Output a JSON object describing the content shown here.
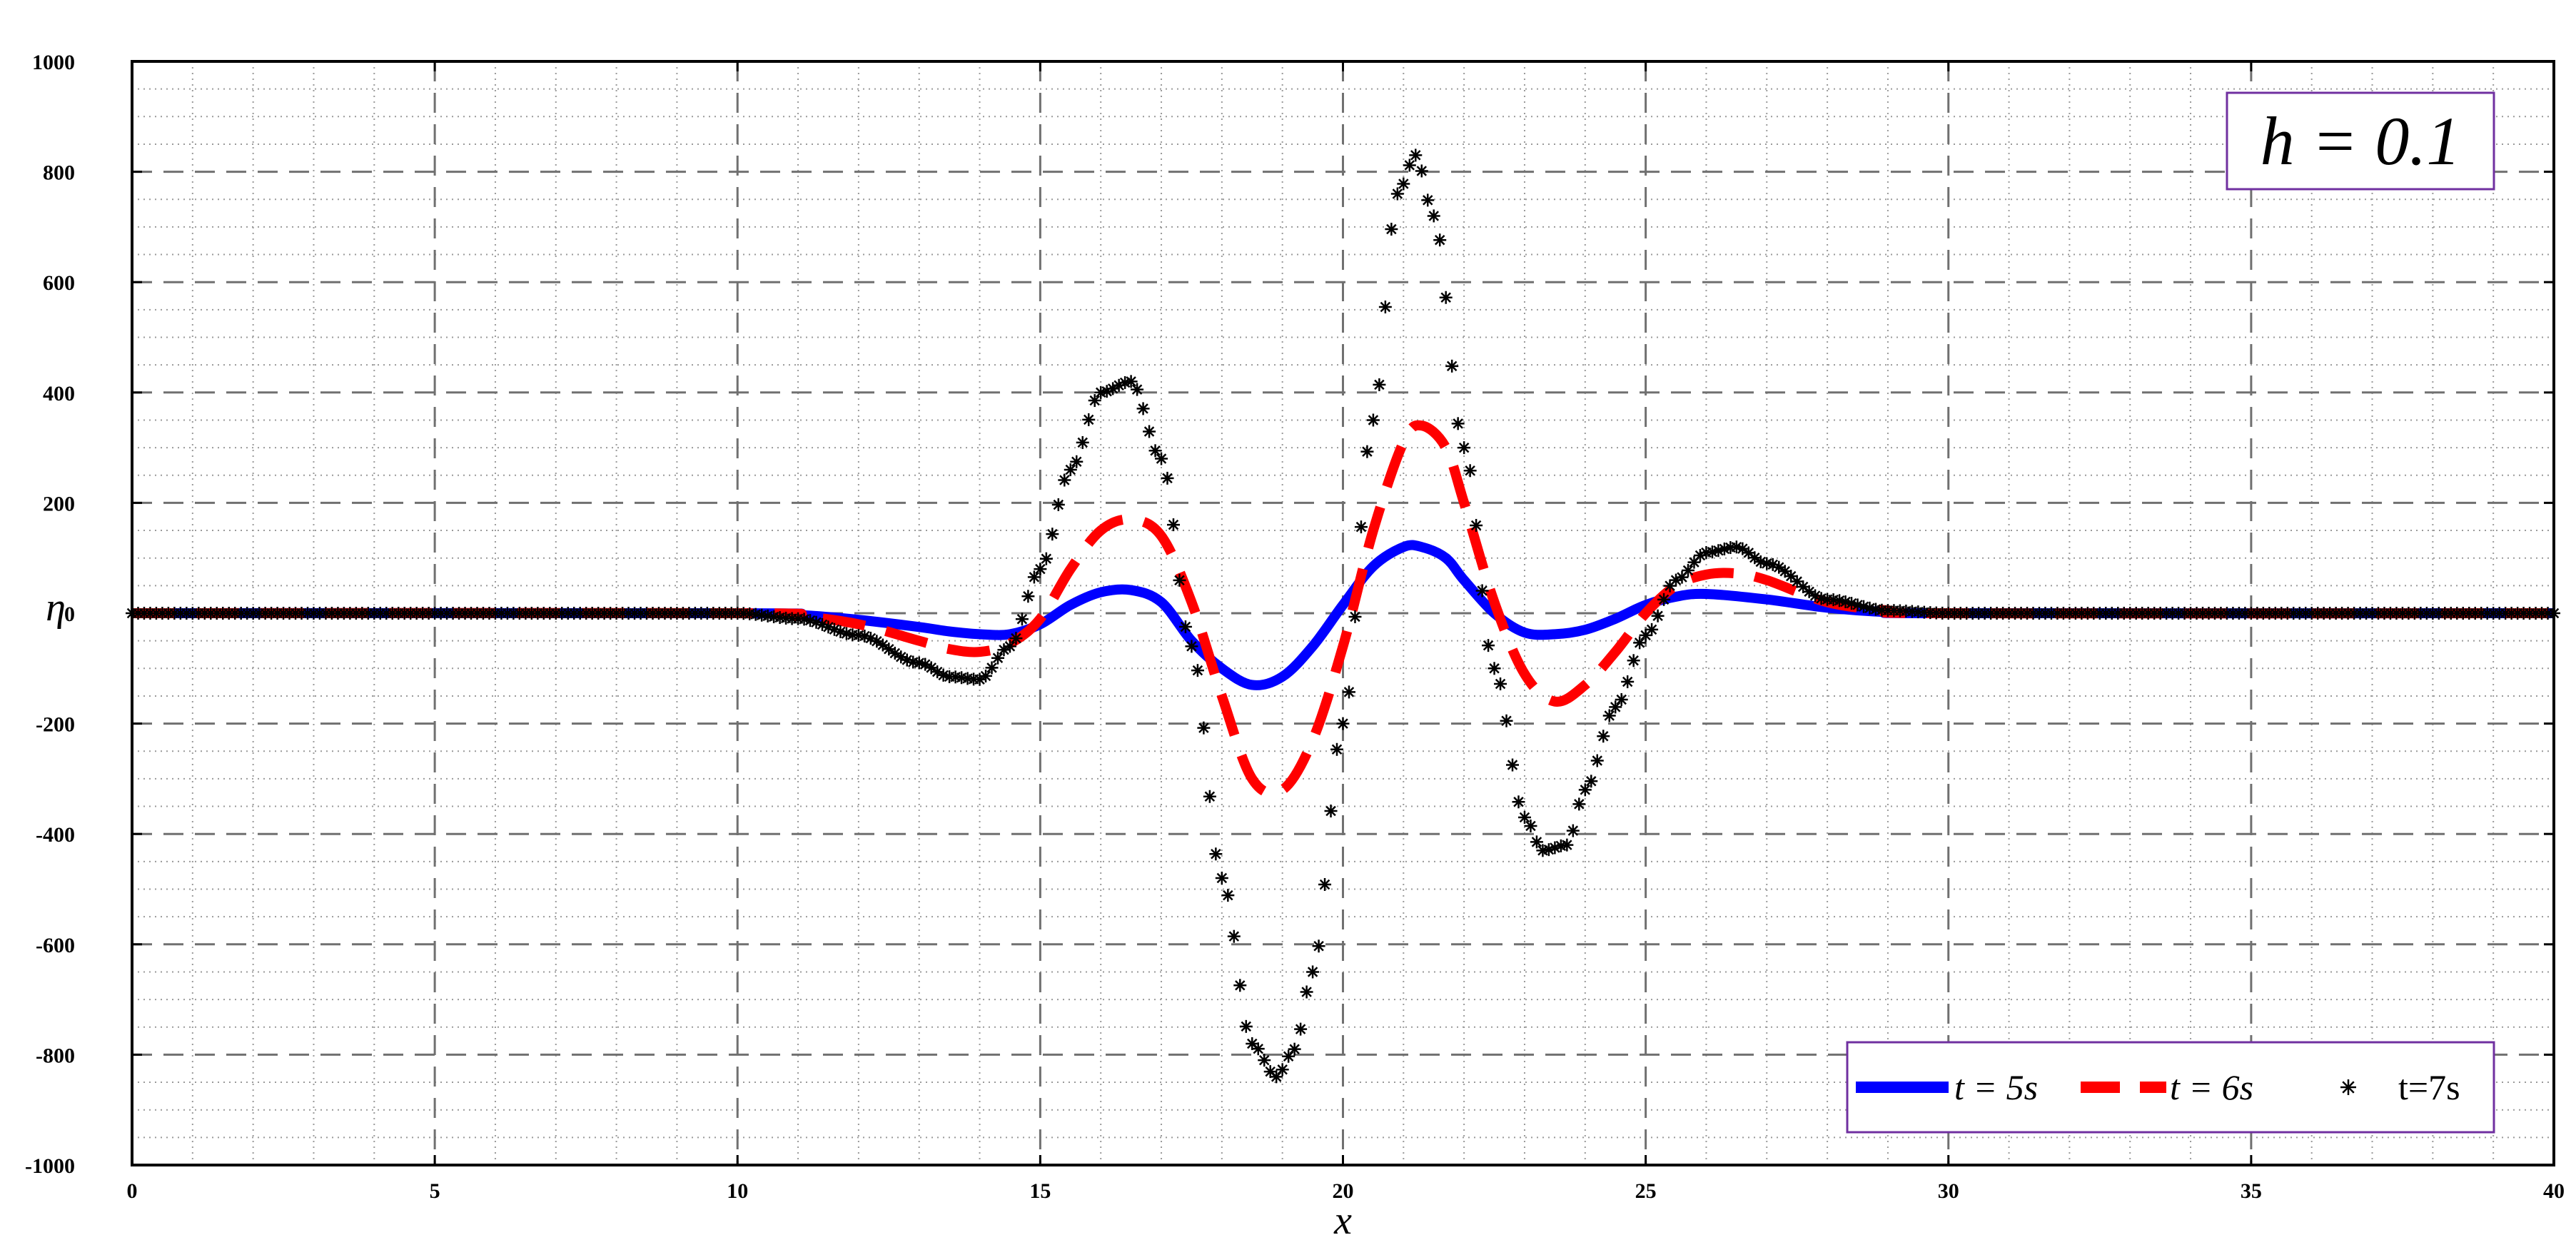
{
  "chart_data": {
    "type": "line",
    "xlabel": "x",
    "ylabel": "η",
    "xlim": [
      0,
      40
    ],
    "ylim": [
      -1000,
      1000
    ],
    "x_ticks": [
      0,
      5,
      10,
      15,
      20,
      25,
      30,
      35,
      40
    ],
    "y_ticks": [
      -1000,
      -800,
      -600,
      -400,
      -200,
      0,
      200,
      400,
      600,
      800,
      1000
    ],
    "y_tick_labels": [
      "-1000",
      "-800",
      "-600",
      "-400",
      "-200",
      "0",
      "200",
      "400",
      "600",
      "800",
      "1000"
    ],
    "x_tick_labels": [
      "0",
      "5",
      "10",
      "15",
      "20",
      "25",
      "30",
      "35",
      "40"
    ],
    "grid": true,
    "minor_grid": true,
    "annotation": "h = 0.1",
    "legend_position": "bottom-right",
    "series": [
      {
        "name": "t = 5s",
        "style": "solid",
        "color": "#0000ff",
        "x": [
          0,
          10,
          11,
          12,
          13,
          13.5,
          14,
          14.5,
          15,
          15.5,
          16,
          16.5,
          17,
          17.5,
          18,
          18.5,
          19,
          19.5,
          20,
          20.5,
          21,
          21.3,
          21.7,
          22,
          22.5,
          23,
          23.5,
          24,
          24.5,
          25,
          25.5,
          26,
          27,
          28,
          29,
          30,
          40
        ],
        "y": [
          0,
          0,
          -3,
          -12,
          -25,
          -33,
          -38,
          -38,
          -20,
          15,
          38,
          42,
          20,
          -50,
          -100,
          -130,
          -115,
          -60,
          15,
          85,
          120,
          120,
          100,
          60,
          0,
          -35,
          -38,
          -30,
          -10,
          15,
          30,
          35,
          25,
          10,
          2,
          0,
          0
        ]
      },
      {
        "name": "t = 6s",
        "style": "dashed",
        "color": "#ff0000",
        "x": [
          0,
          10,
          11,
          12,
          13,
          13.5,
          14,
          14.5,
          15,
          15.5,
          16,
          16.5,
          17,
          17.5,
          18,
          18.5,
          19,
          19.5,
          20,
          20.5,
          21,
          21.3,
          21.7,
          22,
          22.5,
          23,
          23.5,
          24,
          24.5,
          25,
          25.5,
          26,
          26.5,
          27,
          28,
          29,
          30,
          40
        ],
        "y": [
          0,
          0,
          -5,
          -20,
          -50,
          -65,
          -70,
          -55,
          -10,
          80,
          150,
          170,
          140,
          20,
          -150,
          -300,
          -320,
          -230,
          -60,
          150,
          310,
          340,
          300,
          200,
          20,
          -110,
          -160,
          -130,
          -70,
          0,
          50,
          70,
          72,
          60,
          20,
          5,
          0,
          0
        ]
      },
      {
        "name": "t=7s",
        "style": "markers",
        "marker": "asterisk",
        "color": "#000000",
        "x": [
          0,
          10,
          11,
          12,
          13,
          13.5,
          14,
          14.5,
          15,
          15.5,
          16,
          16.5,
          17,
          17.5,
          18,
          18.5,
          18.9,
          19.2,
          19.5,
          20,
          20.5,
          20.9,
          21.2,
          21.5,
          22,
          22.5,
          23,
          23.3,
          23.7,
          24,
          24.5,
          25,
          25.5,
          26,
          26.5,
          27,
          28,
          29,
          30,
          40
        ],
        "y": [
          0,
          0,
          -10,
          -40,
          -90,
          -115,
          -120,
          -60,
          80,
          260,
          400,
          420,
          280,
          -60,
          -480,
          -780,
          -840,
          -790,
          -650,
          -200,
          350,
          760,
          830,
          720,
          300,
          -100,
          -370,
          -430,
          -420,
          -320,
          -170,
          -40,
          60,
          110,
          120,
          90,
          25,
          5,
          0,
          0
        ]
      }
    ]
  }
}
